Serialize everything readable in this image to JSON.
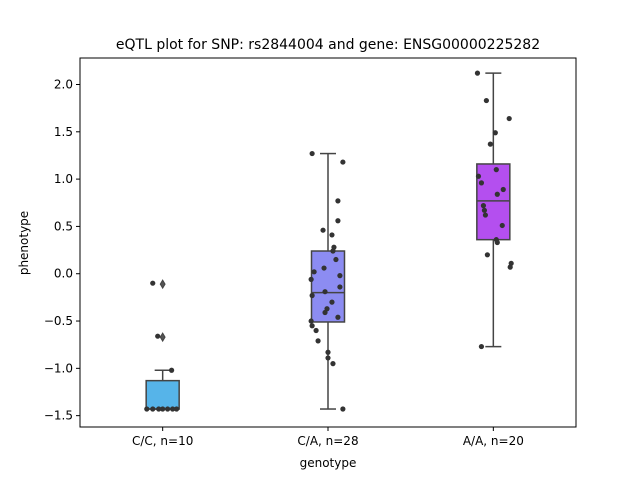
{
  "chart_data": {
    "type": "box",
    "title": "eQTL plot for SNP: rs2844004 and gene: ENSG00000225282",
    "xlabel": "genotype",
    "ylabel": "phenotype",
    "ylim": [
      -1.62,
      2.28
    ],
    "yticks": [
      -1.5,
      -1.0,
      -0.5,
      0.0,
      0.5,
      1.0,
      1.5,
      2.0
    ],
    "ytick_labels": [
      "−1.5",
      "−1.0",
      "−0.5",
      "0.0",
      "0.5",
      "1.0",
      "1.5",
      "2.0"
    ],
    "categories": [
      "C/C, n=10",
      "C/A, n=28",
      "A/A, n=20"
    ],
    "boxes": [
      {
        "category": "C/C, n=10",
        "color": "#56b4e9",
        "whisker_low": -1.43,
        "q1": -1.43,
        "median": -1.43,
        "q3": -1.13,
        "whisker_high": -1.02,
        "outliers": [
          -0.11,
          -0.67
        ],
        "points": [
          {
            "dx": -0.1,
            "y": -0.1
          },
          {
            "dx": -0.05,
            "y": -0.66
          },
          {
            "dx": 0.09,
            "y": -1.02
          },
          {
            "dx": -0.16,
            "y": -1.43
          },
          {
            "dx": -0.1,
            "y": -1.43
          },
          {
            "dx": -0.04,
            "y": -1.43
          },
          {
            "dx": 0.0,
            "y": -1.43
          },
          {
            "dx": 0.05,
            "y": -1.43
          },
          {
            "dx": 0.1,
            "y": -1.43
          },
          {
            "dx": 0.14,
            "y": -1.43
          }
        ]
      },
      {
        "category": "C/A, n=28",
        "color": "#8c8cf2",
        "whisker_low": -1.43,
        "q1": -0.51,
        "median": -0.2,
        "q3": 0.24,
        "whisker_high": 1.27,
        "outliers": [],
        "points": [
          {
            "dx": -0.16,
            "y": 1.27
          },
          {
            "dx": 0.15,
            "y": 1.18
          },
          {
            "dx": 0.1,
            "y": 0.77
          },
          {
            "dx": 0.1,
            "y": 0.56
          },
          {
            "dx": -0.05,
            "y": 0.46
          },
          {
            "dx": 0.04,
            "y": 0.41
          },
          {
            "dx": 0.06,
            "y": 0.28
          },
          {
            "dx": 0.05,
            "y": 0.24
          },
          {
            "dx": 0.08,
            "y": 0.15
          },
          {
            "dx": -0.14,
            "y": 0.02
          },
          {
            "dx": 0.12,
            "y": -0.02
          },
          {
            "dx": -0.17,
            "y": -0.06
          },
          {
            "dx": 0.12,
            "y": -0.14
          },
          {
            "dx": -0.03,
            "y": -0.19
          },
          {
            "dx": -0.16,
            "y": -0.23
          },
          {
            "dx": 0.04,
            "y": -0.3
          },
          {
            "dx": -0.01,
            "y": -0.37
          },
          {
            "dx": -0.03,
            "y": -0.41
          },
          {
            "dx": 0.1,
            "y": -0.46
          },
          {
            "dx": -0.17,
            "y": -0.5
          },
          {
            "dx": -0.16,
            "y": -0.55
          },
          {
            "dx": -0.12,
            "y": -0.6
          },
          {
            "dx": -0.1,
            "y": -0.71
          },
          {
            "dx": 0.0,
            "y": -0.83
          },
          {
            "dx": 0.0,
            "y": -0.89
          },
          {
            "dx": 0.05,
            "y": -0.95
          },
          {
            "dx": 0.15,
            "y": -1.43
          },
          {
            "dx": -0.04,
            "y": 0.06
          }
        ]
      },
      {
        "category": "A/A, n=20",
        "color": "#b44fef",
        "whisker_low": -0.77,
        "q1": 0.36,
        "median": 0.77,
        "q3": 1.16,
        "whisker_high": 2.12,
        "outliers": [],
        "points": [
          {
            "dx": -0.16,
            "y": 2.12
          },
          {
            "dx": -0.07,
            "y": 1.83
          },
          {
            "dx": 0.16,
            "y": 1.64
          },
          {
            "dx": 0.02,
            "y": 1.49
          },
          {
            "dx": -0.03,
            "y": 1.37
          },
          {
            "dx": 0.03,
            "y": 1.1
          },
          {
            "dx": -0.15,
            "y": 1.03
          },
          {
            "dx": -0.12,
            "y": 0.96
          },
          {
            "dx": 0.1,
            "y": 0.89
          },
          {
            "dx": 0.04,
            "y": 0.84
          },
          {
            "dx": -0.1,
            "y": 0.72
          },
          {
            "dx": -0.09,
            "y": 0.67
          },
          {
            "dx": -0.08,
            "y": 0.62
          },
          {
            "dx": 0.09,
            "y": 0.51
          },
          {
            "dx": 0.03,
            "y": 0.36
          },
          {
            "dx": 0.04,
            "y": 0.33
          },
          {
            "dx": -0.06,
            "y": 0.2
          },
          {
            "dx": 0.18,
            "y": 0.11
          },
          {
            "dx": 0.17,
            "y": 0.07
          },
          {
            "dx": -0.12,
            "y": -0.77
          }
        ]
      }
    ]
  }
}
